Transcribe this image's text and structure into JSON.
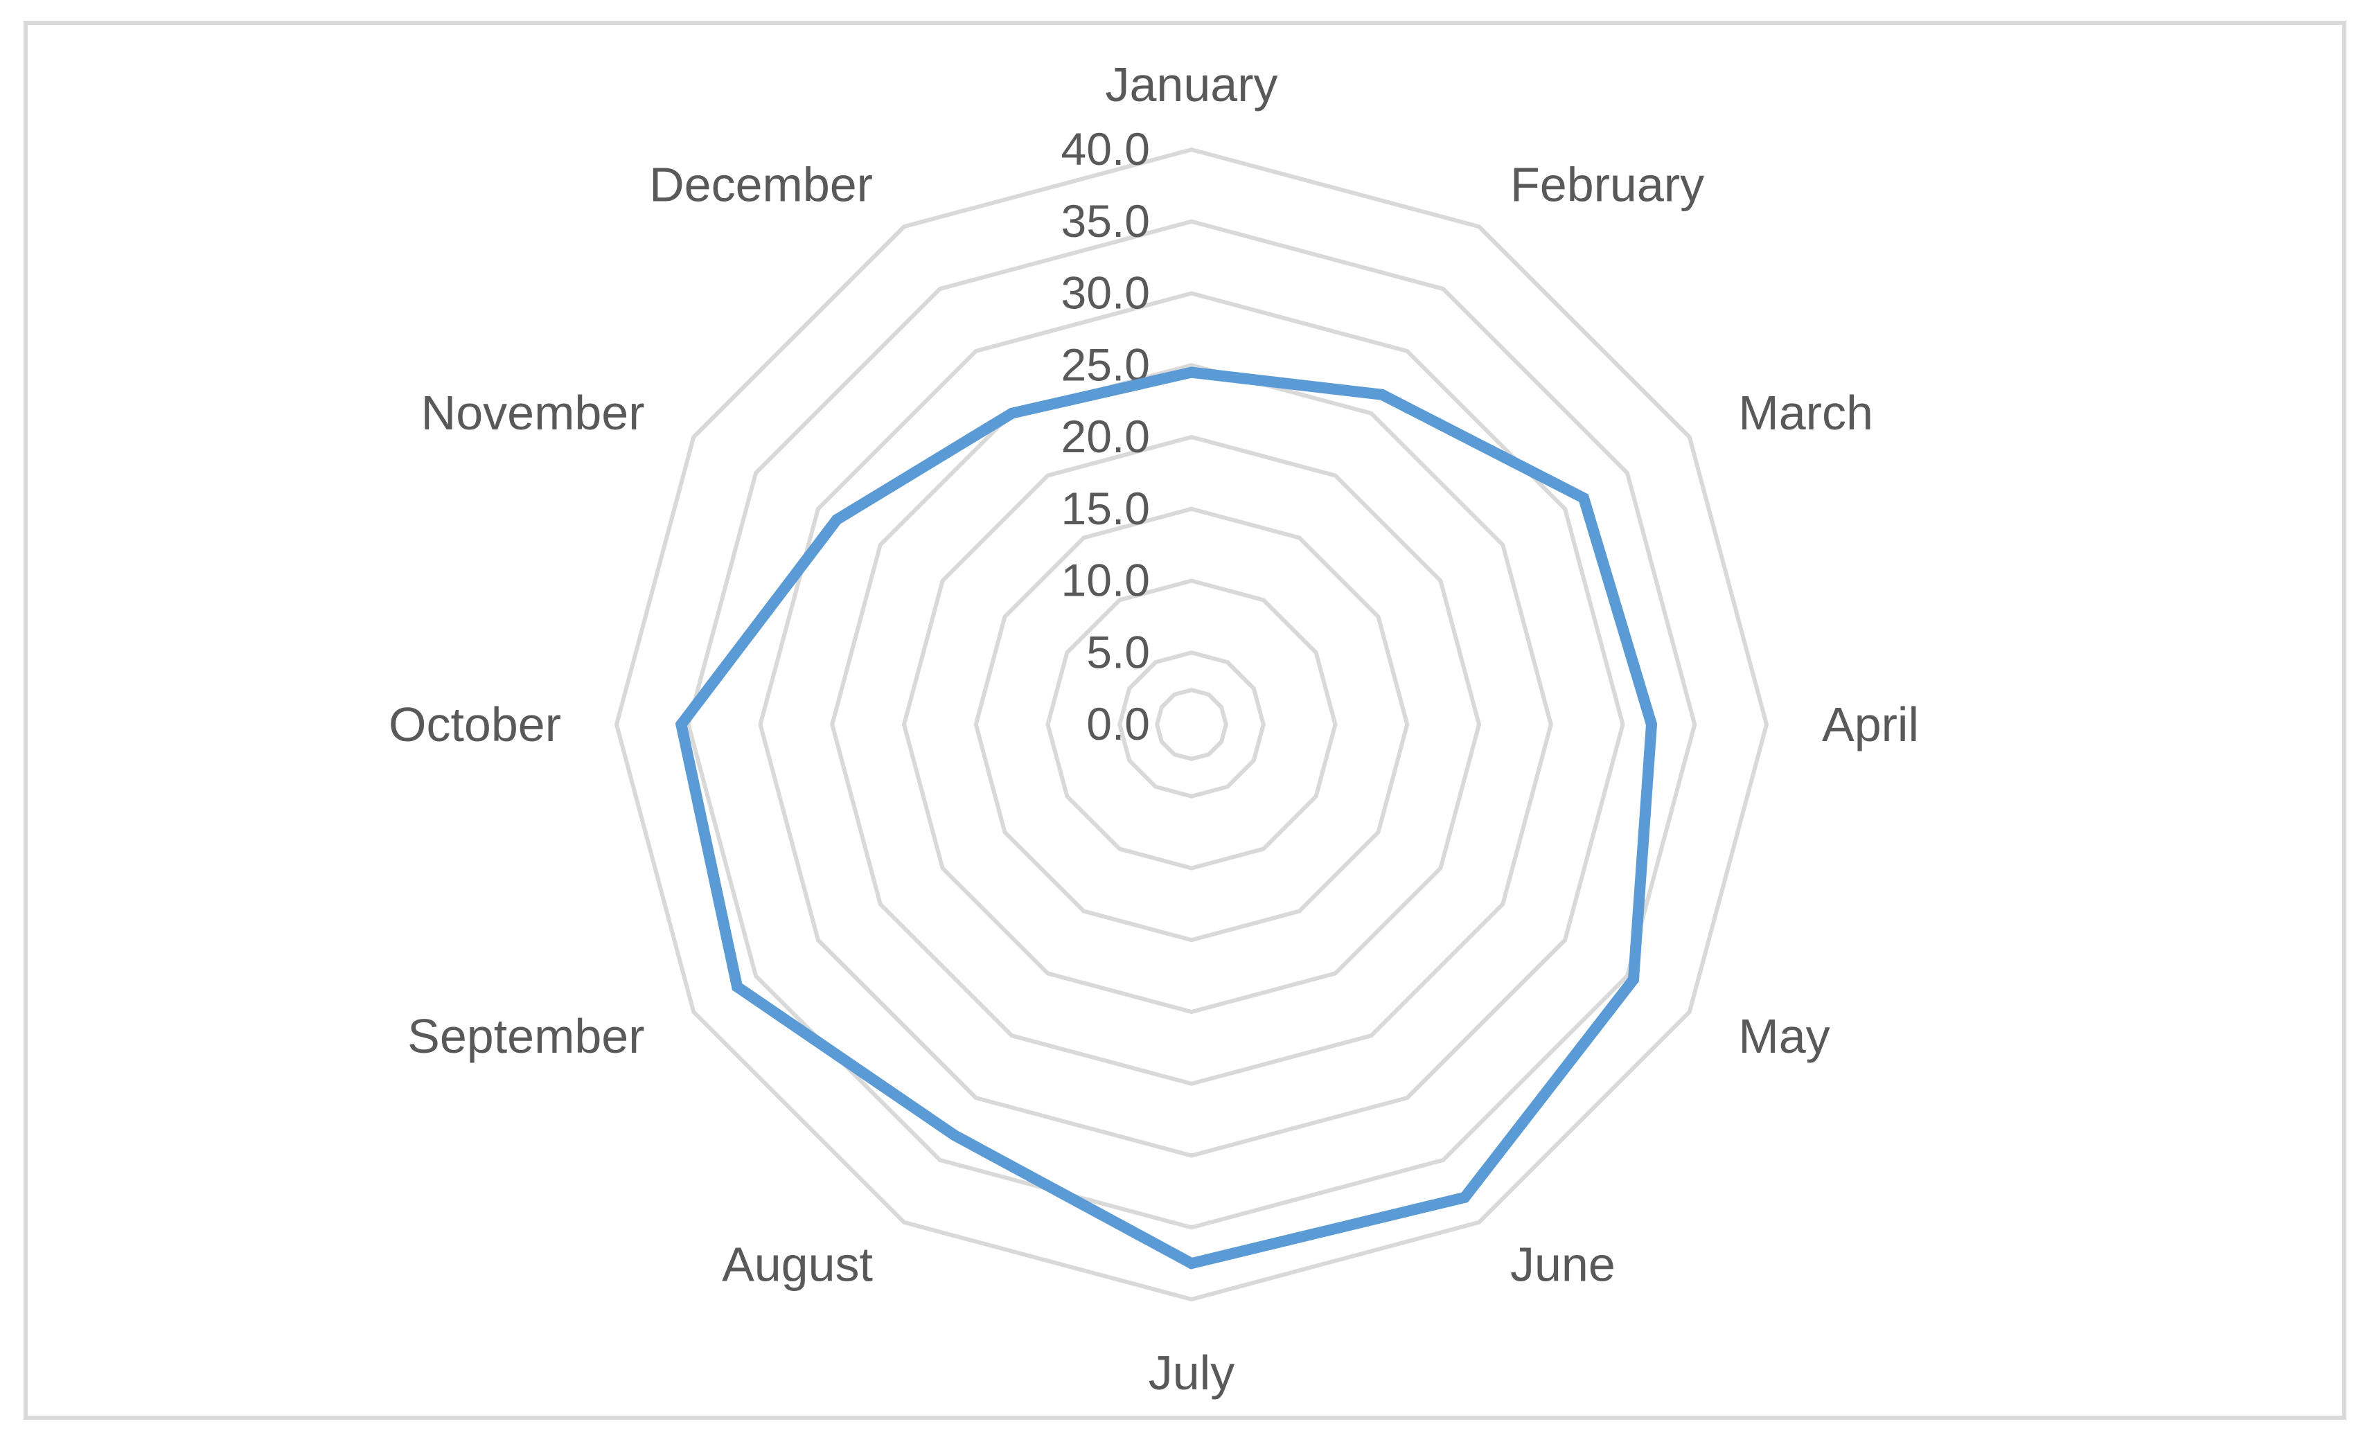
{
  "chart_data": {
    "type": "radar",
    "title": "",
    "categories": [
      "January",
      "February",
      "March",
      "April",
      "May",
      "June",
      "July",
      "August",
      "September",
      "October",
      "November",
      "December"
    ],
    "series": [
      {
        "values": [
          24.5,
          26.5,
          31.5,
          32.0,
          35.5,
          38.0,
          37.5,
          33.0,
          36.5,
          35.5,
          28.5,
          25.0
        ]
      }
    ],
    "r_ticks": [
      "0.0",
      "5.0",
      "10.0",
      "15.0",
      "20.0",
      "25.0",
      "30.0",
      "35.0",
      "40.0"
    ],
    "r_range": [
      0,
      40
    ],
    "grid": true,
    "legend": "none",
    "colors": {
      "series": "#5b9bd5",
      "grid": "#d9d9d9",
      "text": "#595959",
      "border": "#d9d9d9"
    }
  }
}
